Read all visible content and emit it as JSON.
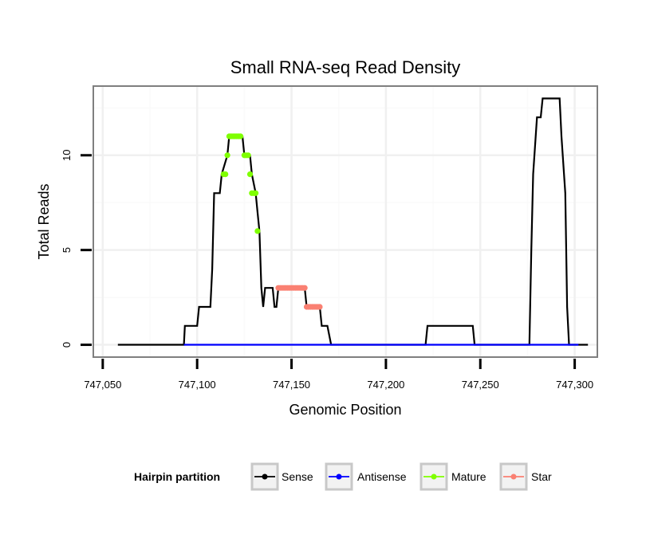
{
  "chart_data": {
    "type": "line",
    "title": "Small RNA-seq Read Density",
    "xlabel": "Genomic Position",
    "ylabel": "Total Reads",
    "xlim": [
      747045,
      747312
    ],
    "ylim": [
      -0.65,
      13.65
    ],
    "x_ticks": [
      747050,
      747100,
      747150,
      747200,
      747250,
      747300
    ],
    "x_tick_labels": [
      "747,050",
      "747,100",
      "747,150",
      "747,200",
      "747,250",
      "747,300"
    ],
    "y_ticks": [
      0,
      5,
      10
    ],
    "y_tick_labels": [
      "0",
      "5",
      "10"
    ],
    "grid": true,
    "legend": {
      "title": "Hairpin partition",
      "position": "bottom",
      "entries": [
        {
          "name": "Sense",
          "color": "#000000"
        },
        {
          "name": "Antisense",
          "color": "#0000ff"
        },
        {
          "name": "Mature",
          "color": "#7fff00"
        },
        {
          "name": "Star",
          "color": "#fa8072"
        }
      ]
    },
    "series": [
      {
        "name": "Sense",
        "color": "#000000",
        "points": [
          [
            747058,
            0
          ],
          [
            747093,
            0
          ],
          [
            747093.5,
            1
          ],
          [
            747100,
            1
          ],
          [
            747101,
            2
          ],
          [
            747107,
            2
          ],
          [
            747108,
            4
          ],
          [
            747109,
            8
          ],
          [
            747112,
            8
          ],
          [
            747113,
            9
          ],
          [
            747116,
            10
          ],
          [
            747117,
            11
          ],
          [
            747124,
            11
          ],
          [
            747125,
            10
          ],
          [
            747128,
            10
          ],
          [
            747129,
            9
          ],
          [
            747131,
            8
          ],
          [
            747132,
            7
          ],
          [
            747133,
            6
          ],
          [
            747134,
            3
          ],
          [
            747135,
            2
          ],
          [
            747136,
            3
          ],
          [
            747140,
            3
          ],
          [
            747141,
            2
          ],
          [
            747142,
            2
          ],
          [
            747143,
            3
          ],
          [
            747157,
            3
          ],
          [
            747158,
            2
          ],
          [
            747165,
            2
          ],
          [
            747166,
            1
          ],
          [
            747169,
            1
          ],
          [
            747171,
            0
          ],
          [
            747221,
            0
          ],
          [
            747222,
            1
          ],
          [
            747246,
            1
          ],
          [
            747247,
            0
          ],
          [
            747276,
            0
          ],
          [
            747277,
            5
          ],
          [
            747278,
            9
          ],
          [
            747280,
            12
          ],
          [
            747282,
            12
          ],
          [
            747283,
            13
          ],
          [
            747292,
            13
          ],
          [
            747293,
            11
          ],
          [
            747295,
            8
          ],
          [
            747296,
            2
          ],
          [
            747297,
            0
          ],
          [
            747307,
            0
          ]
        ]
      },
      {
        "name": "Antisense",
        "color": "#0000ff",
        "points": [
          [
            747093,
            0
          ],
          [
            747302,
            0
          ]
        ]
      },
      {
        "name": "Mature",
        "color": "#7fff00",
        "points": [
          [
            747114,
            9
          ],
          [
            747115,
            9
          ],
          [
            747116,
            10
          ],
          [
            747117,
            11
          ],
          [
            747118,
            11
          ],
          [
            747119,
            11
          ],
          [
            747120,
            11
          ],
          [
            747121,
            11
          ],
          [
            747122,
            11
          ],
          [
            747123,
            11
          ],
          [
            747125,
            10
          ],
          [
            747126,
            10
          ],
          [
            747127,
            10
          ],
          [
            747128,
            9
          ],
          [
            747129,
            8
          ],
          [
            747130,
            8
          ],
          [
            747131,
            8
          ],
          [
            747132,
            6
          ]
        ]
      },
      {
        "name": "Star",
        "color": "#fa8072",
        "points": [
          [
            747143,
            3
          ],
          [
            747144,
            3
          ],
          [
            747145,
            3
          ],
          [
            747146,
            3
          ],
          [
            747147,
            3
          ],
          [
            747148,
            3
          ],
          [
            747149,
            3
          ],
          [
            747150,
            3
          ],
          [
            747151,
            3
          ],
          [
            747152,
            3
          ],
          [
            747153,
            3
          ],
          [
            747154,
            3
          ],
          [
            747155,
            3
          ],
          [
            747156,
            3
          ],
          [
            747157,
            3
          ],
          [
            747158,
            2
          ],
          [
            747159,
            2
          ],
          [
            747160,
            2
          ],
          [
            747161,
            2
          ],
          [
            747162,
            2
          ],
          [
            747163,
            2
          ],
          [
            747164,
            2
          ],
          [
            747165,
            2
          ]
        ]
      }
    ]
  }
}
